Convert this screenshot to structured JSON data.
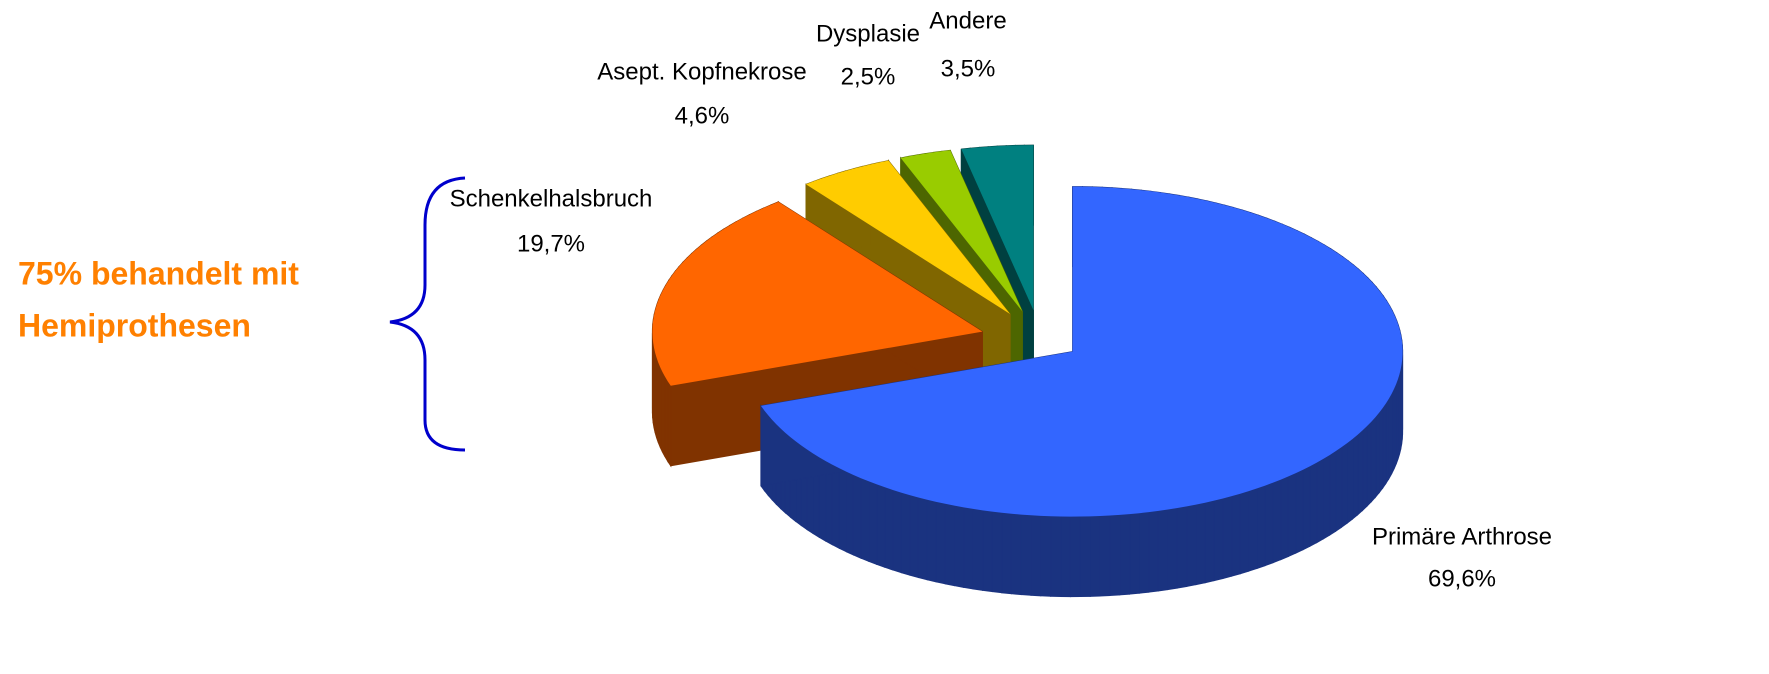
{
  "chart_data": {
    "type": "pie3d",
    "categories": [
      "Primäre Arthrose",
      "Schenkelhalsbruch",
      "Asept. Kopfnekrose",
      "Dysplasie",
      "Andere"
    ],
    "values": [
      69.6,
      19.7,
      4.6,
      2.5,
      3.5
    ],
    "value_labels": [
      "69,6%",
      "19,7%",
      "4,6%",
      "2,5%",
      "3,5%"
    ],
    "colors": [
      "#3366ff",
      "#ff6600",
      "#ffcc00",
      "#99cc00",
      "#008080"
    ],
    "annotation": [
      "75% behandelt mit",
      "Hemiprothesen"
    ]
  }
}
